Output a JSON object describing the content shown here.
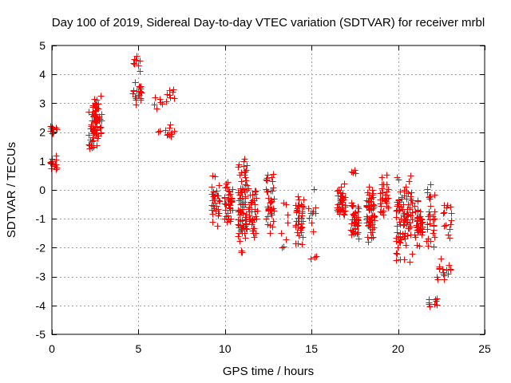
{
  "chart_data": {
    "type": "scatter",
    "title": "Day 100 of 2019, Sidereal Day-to-day VTEC variation (SDTVAR) for receiver mrbl",
    "xlabel": "GPS time / hours",
    "ylabel": "SDTVAR / TECUs",
    "xlim": [
      0,
      25
    ],
    "ylim": [
      -5,
      5
    ],
    "x_ticks": [
      0,
      5,
      10,
      15,
      20,
      25
    ],
    "y_ticks": [
      -5,
      -4,
      -3,
      -2,
      -1,
      0,
      1,
      2,
      3,
      4,
      5
    ],
    "grid": true,
    "marker": "+",
    "marker_color": "#ff0000",
    "series": [
      {
        "name": "SDTVAR",
        "clusters": [
          {
            "x": 0.05,
            "y_min": 0.6,
            "y_max": 1.2,
            "count": 14
          },
          {
            "x": 0.08,
            "y_min": 1.9,
            "y_max": 2.25,
            "count": 10
          },
          {
            "x": 2.35,
            "y_min": 0.95,
            "y_max": 3.5,
            "count": 40
          },
          {
            "x": 2.6,
            "y_min": 1.5,
            "y_max": 3.3,
            "count": 40
          },
          {
            "x": 4.9,
            "y_min": 2.9,
            "y_max": 3.8,
            "count": 22
          },
          {
            "x": 4.9,
            "y_min": 4.0,
            "y_max": 4.8,
            "count": 8
          },
          {
            "x": 6.15,
            "y_min": 2.8,
            "y_max": 3.3,
            "count": 6
          },
          {
            "x": 6.15,
            "y_min": 2.0,
            "y_max": 2.05,
            "count": 2
          },
          {
            "x": 6.8,
            "y_min": 3.0,
            "y_max": 3.6,
            "count": 8
          },
          {
            "x": 6.8,
            "y_min": 1.7,
            "y_max": 2.3,
            "count": 10
          },
          {
            "x": 9.45,
            "y_min": -1.65,
            "y_max": 0.85,
            "count": 30
          },
          {
            "x": 10.2,
            "y_min": -1.2,
            "y_max": 0.3,
            "count": 40
          },
          {
            "x": 11.0,
            "y_min": -2.5,
            "y_max": 1.25,
            "count": 80
          },
          {
            "x": 11.6,
            "y_min": -1.8,
            "y_max": 0.15,
            "count": 40
          },
          {
            "x": 12.6,
            "y_min": -1.5,
            "y_max": 0.9,
            "count": 40
          },
          {
            "x": 13.5,
            "y_min": -2.45,
            "y_max": 0.1,
            "count": 8
          },
          {
            "x": 14.3,
            "y_min": -2.0,
            "y_max": 0.05,
            "count": 40
          },
          {
            "x": 15.05,
            "y_min": -1.5,
            "y_max": 0.1,
            "count": 10
          },
          {
            "x": 15.05,
            "y_min": -2.4,
            "y_max": -2.3,
            "count": 3
          },
          {
            "x": 16.7,
            "y_min": -1.2,
            "y_max": 0.3,
            "count": 40
          },
          {
            "x": 17.35,
            "y_min": 0.55,
            "y_max": 0.7,
            "count": 4
          },
          {
            "x": 17.5,
            "y_min": -1.9,
            "y_max": -0.2,
            "count": 40
          },
          {
            "x": 18.4,
            "y_min": -2.0,
            "y_max": 0.3,
            "count": 60
          },
          {
            "x": 19.2,
            "y_min": -1.2,
            "y_max": 0.65,
            "count": 30
          },
          {
            "x": 20.1,
            "y_min": -2.6,
            "y_max": 0.5,
            "count": 50
          },
          {
            "x": 20.6,
            "y_min": -2.8,
            "y_max": 0.8,
            "count": 40
          },
          {
            "x": 21.2,
            "y_min": -2.1,
            "y_max": -0.3,
            "count": 40
          },
          {
            "x": 21.9,
            "y_min": -2.2,
            "y_max": 0.4,
            "count": 30
          },
          {
            "x": 22.0,
            "y_min": -4.1,
            "y_max": -3.7,
            "count": 10
          },
          {
            "x": 22.4,
            "y_min": -3.4,
            "y_max": -2.3,
            "count": 8
          },
          {
            "x": 22.8,
            "y_min": -3.0,
            "y_max": -2.6,
            "count": 8
          },
          {
            "x": 22.85,
            "y_min": -1.7,
            "y_max": -0.3,
            "count": 15
          }
        ]
      }
    ]
  }
}
